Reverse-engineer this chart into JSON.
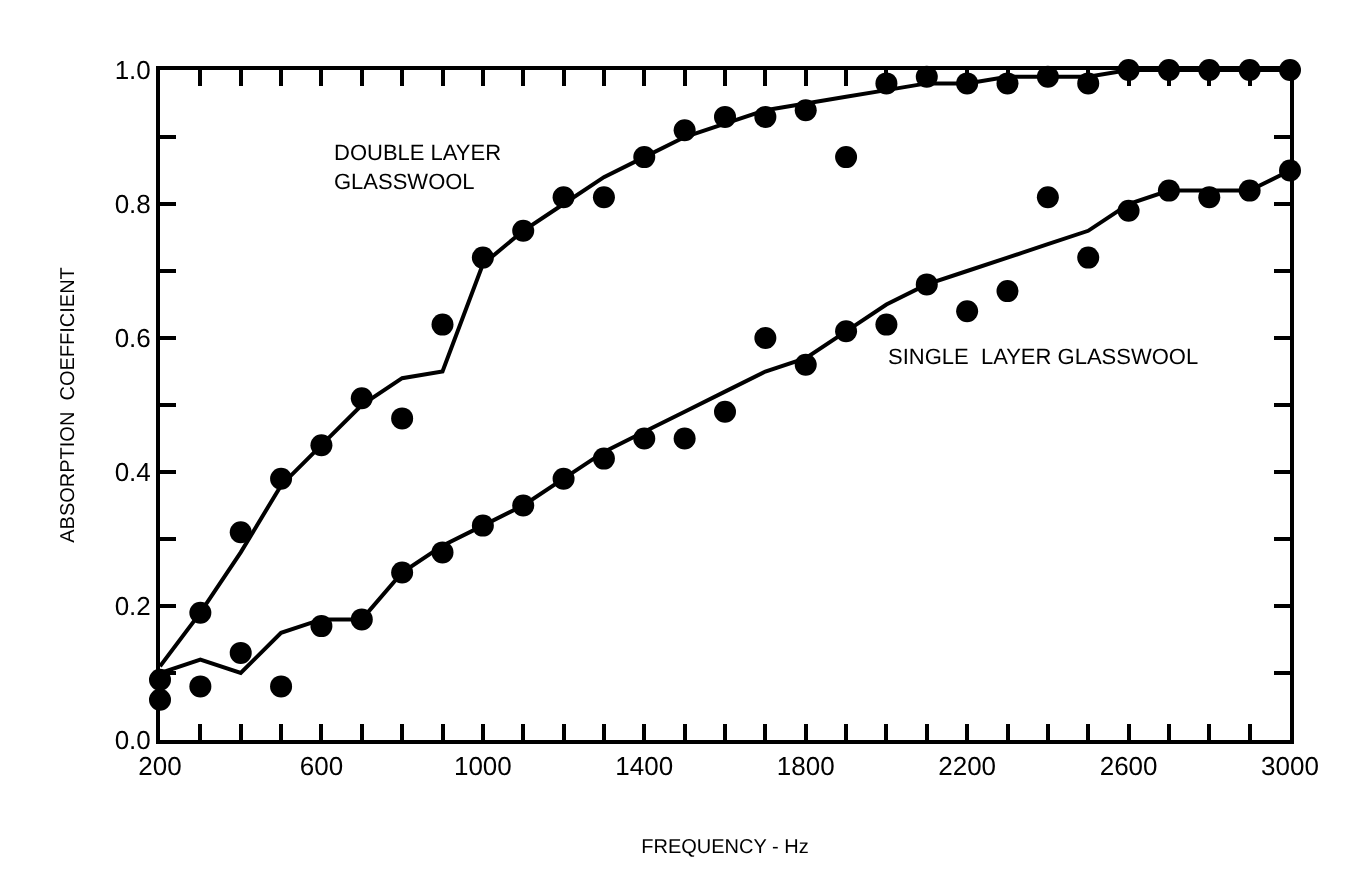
{
  "chart_data": {
    "type": "scatter",
    "xlabel": "FREQUENCY - Hz",
    "ylabel": "ABSORPTION  COEFFICIENT",
    "x": [
      200,
      300,
      400,
      500,
      600,
      700,
      800,
      900,
      1000,
      1100,
      1200,
      1300,
      1400,
      1500,
      1600,
      1700,
      1800,
      1900,
      2000,
      2100,
      2200,
      2300,
      2400,
      2500,
      2600,
      2700,
      2800,
      2900,
      3000
    ],
    "series": [
      {
        "color": "#000000",
        "values": [
          0.09,
          0.19,
          0.31,
          0.39,
          0.44,
          0.51,
          0.48,
          0.62,
          0.72,
          0.76,
          0.81,
          0.81,
          0.87,
          0.91,
          0.93,
          0.93,
          0.94,
          0.87,
          0.98,
          0.99,
          0.98,
          0.98,
          0.99,
          0.98,
          1.0,
          1.0,
          1.0,
          1.0,
          1.0
        ]
      },
      {
        "type": "line",
        "marker": "none",
        "line_style": "solid",
        "color": "#000000",
        "values": [
          0.11,
          0.19,
          0.28,
          0.38,
          0.44,
          0.5,
          0.54,
          0.55,
          0.71,
          0.76,
          0.8,
          0.84,
          0.87,
          0.9,
          0.92,
          0.94,
          0.95,
          0.96,
          0.97,
          0.98,
          0.98,
          0.99,
          0.99,
          0.99,
          1.0,
          1.0,
          1.0,
          1.0,
          1.0
        ]
      },
      {
        "color": "#000000",
        "values": [
          0.06,
          0.08,
          0.13,
          0.08,
          0.17,
          0.18,
          0.25,
          0.28,
          0.32,
          0.35,
          0.39,
          0.42,
          0.45,
          0.45,
          0.49,
          0.6,
          0.56,
          0.61,
          0.62,
          0.68,
          0.64,
          0.67,
          0.81,
          0.72,
          0.79,
          0.82,
          0.81,
          0.82,
          0.85
        ]
      },
      {
        "type": "line",
        "marker": "none",
        "line_style": "solid",
        "color": "#000000",
        "values": [
          0.1,
          0.12,
          0.1,
          0.16,
          0.18,
          0.18,
          0.25,
          0.29,
          0.32,
          0.35,
          0.39,
          0.43,
          0.46,
          0.49,
          0.52,
          0.55,
          0.57,
          0.61,
          0.65,
          0.68,
          0.7,
          0.72,
          0.74,
          0.76,
          0.8,
          0.82,
          0.82,
          0.82,
          0.85
        ]
      }
    ],
    "annotations": [
      "DOUBLE LAYER\nGLASSWOOL",
      "SINGLE  LAYER GLASSWOOL"
    ],
    "xlim": [
      200,
      3000
    ],
    "xticks": [
      200,
      {
        "value": 300,
        "label": null
      },
      {
        "value": 400,
        "label": null
      },
      {
        "value": 500,
        "label": null
      },
      600,
      {
        "value": 700,
        "label": null
      },
      {
        "value": 800,
        "label": null
      },
      {
        "value": 900,
        "label": null
      },
      1000,
      {
        "value": 1100,
        "label": null
      },
      {
        "value": 1200,
        "label": null
      },
      {
        "value": 1300,
        "label": null
      },
      1400,
      {
        "value": 1500,
        "label": null
      },
      {
        "value": 1600,
        "label": null
      },
      {
        "value": 1700,
        "label": null
      },
      1800,
      {
        "value": 1900,
        "label": null
      },
      {
        "value": 2000,
        "label": null
      },
      {
        "value": 2100,
        "label": null
      },
      2200,
      {
        "value": 2300,
        "label": null
      },
      {
        "value": 2400,
        "label": null
      },
      {
        "value": 2500,
        "label": null
      },
      2600,
      {
        "value": 2700,
        "label": null
      },
      {
        "value": 2800,
        "label": null
      },
      {
        "value": 2900,
        "label": null
      },
      3000
    ],
    "ylim": [
      0,
      1.0
    ],
    "yticks": [
      {
        "value": 0,
        "label": "0.0"
      },
      {
        "value": 0.1,
        "label": null
      },
      {
        "value": 0.2,
        "label": "0.2"
      },
      {
        "value": 0.3,
        "label": null
      },
      {
        "value": 0.4,
        "label": "0.4"
      },
      {
        "value": 0.5,
        "label": null
      },
      {
        "value": 0.6,
        "label": "0.6"
      },
      {
        "value": 0.7,
        "label": null
      },
      {
        "value": 0.8,
        "label": "0.8"
      },
      {
        "value": 0.9,
        "label": null
      },
      {
        "value": 1.0,
        "label": "1.0"
      }
    ],
    "marker": "circle"
  }
}
